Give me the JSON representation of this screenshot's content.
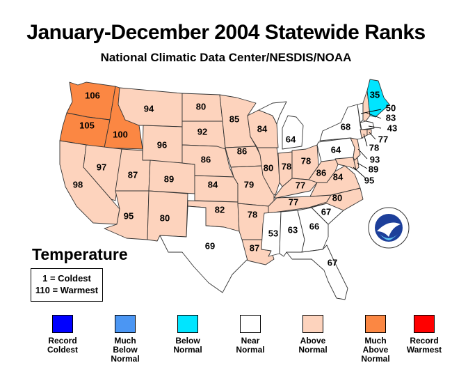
{
  "title": "January-December 2004 Statewide Ranks",
  "subtitle": "National Climatic Data Center/NESDIS/NOAA",
  "parameter": "Temperature",
  "scale_note": {
    "coldest": "1 = Coldest",
    "warmest": "110 = Warmest"
  },
  "legend": [
    {
      "key": "record-coldest",
      "label": "Record Coldest",
      "color": "#0000ff"
    },
    {
      "key": "much-below-normal",
      "label": "Much Below Normal",
      "color": "#4b96f3"
    },
    {
      "key": "below-normal",
      "label": "Below Normal",
      "color": "#00e5ff"
    },
    {
      "key": "near-normal",
      "label": "Near Normal",
      "color": "#ffffff"
    },
    {
      "key": "above-normal",
      "label": "Above Normal",
      "color": "#fdd3bd"
    },
    {
      "key": "much-above-normal",
      "label": "Much Above Normal",
      "color": "#fb8743"
    },
    {
      "key": "record-warmest",
      "label": "Record Warmest",
      "color": "#ff0000"
    }
  ],
  "states": [
    {
      "id": "WA",
      "rank": "106",
      "category": "much-above-normal"
    },
    {
      "id": "OR",
      "rank": "105",
      "category": "much-above-normal"
    },
    {
      "id": "ID",
      "rank": "100",
      "category": "much-above-normal"
    },
    {
      "id": "MT",
      "rank": "94",
      "category": "above-normal"
    },
    {
      "id": "WY",
      "rank": "96",
      "category": "above-normal"
    },
    {
      "id": "CA",
      "rank": "98",
      "category": "above-normal"
    },
    {
      "id": "NV",
      "rank": "97",
      "category": "above-normal"
    },
    {
      "id": "UT",
      "rank": "87",
      "category": "above-normal"
    },
    {
      "id": "CO",
      "rank": "89",
      "category": "above-normal"
    },
    {
      "id": "AZ",
      "rank": "95",
      "category": "above-normal"
    },
    {
      "id": "NM",
      "rank": "80",
      "category": "above-normal"
    },
    {
      "id": "ND",
      "rank": "80",
      "category": "above-normal"
    },
    {
      "id": "SD",
      "rank": "92",
      "category": "above-normal"
    },
    {
      "id": "NE",
      "rank": "86",
      "category": "above-normal"
    },
    {
      "id": "KS",
      "rank": "84",
      "category": "above-normal"
    },
    {
      "id": "OK",
      "rank": "82",
      "category": "above-normal"
    },
    {
      "id": "TX",
      "rank": "69",
      "category": "near-normal"
    },
    {
      "id": "MN",
      "rank": "85",
      "category": "above-normal"
    },
    {
      "id": "IA",
      "rank": "86",
      "category": "above-normal"
    },
    {
      "id": "MO",
      "rank": "79",
      "category": "above-normal"
    },
    {
      "id": "AR",
      "rank": "78",
      "category": "above-normal"
    },
    {
      "id": "LA",
      "rank": "87",
      "category": "above-normal"
    },
    {
      "id": "WI",
      "rank": "84",
      "category": "above-normal"
    },
    {
      "id": "IL",
      "rank": "80",
      "category": "above-normal"
    },
    {
      "id": "MI",
      "rank": "64",
      "category": "near-normal"
    },
    {
      "id": "IN",
      "rank": "78",
      "category": "above-normal"
    },
    {
      "id": "OH",
      "rank": "78",
      "category": "above-normal"
    },
    {
      "id": "KY",
      "rank": "77",
      "category": "above-normal"
    },
    {
      "id": "TN",
      "rank": "77",
      "category": "above-normal"
    },
    {
      "id": "MS",
      "rank": "53",
      "category": "near-normal"
    },
    {
      "id": "AL",
      "rank": "63",
      "category": "near-normal"
    },
    {
      "id": "GA",
      "rank": "66",
      "category": "near-normal"
    },
    {
      "id": "FL",
      "rank": "67",
      "category": "near-normal"
    },
    {
      "id": "SC",
      "rank": "67",
      "category": "near-normal"
    },
    {
      "id": "NC",
      "rank": "80",
      "category": "above-normal"
    },
    {
      "id": "VA",
      "rank": "84",
      "category": "above-normal"
    },
    {
      "id": "WV",
      "rank": "86",
      "category": "above-normal"
    },
    {
      "id": "PA",
      "rank": "64",
      "category": "near-normal"
    },
    {
      "id": "NY",
      "rank": "68",
      "category": "near-normal"
    },
    {
      "id": "ME",
      "rank": "35",
      "category": "below-normal"
    },
    {
      "id": "VT",
      "rank": "50",
      "category": "near-normal"
    },
    {
      "id": "NH",
      "rank": "83",
      "category": "above-normal"
    },
    {
      "id": "MA",
      "rank": "43",
      "category": "near-normal"
    },
    {
      "id": "RI",
      "rank": "77",
      "category": "above-normal"
    },
    {
      "id": "CT",
      "rank": "78",
      "category": "above-normal"
    },
    {
      "id": "NJ",
      "rank": "93",
      "category": "above-normal"
    },
    {
      "id": "DE",
      "rank": "89",
      "category": "above-normal"
    },
    {
      "id": "MD",
      "rank": "95",
      "category": "above-normal"
    }
  ]
}
